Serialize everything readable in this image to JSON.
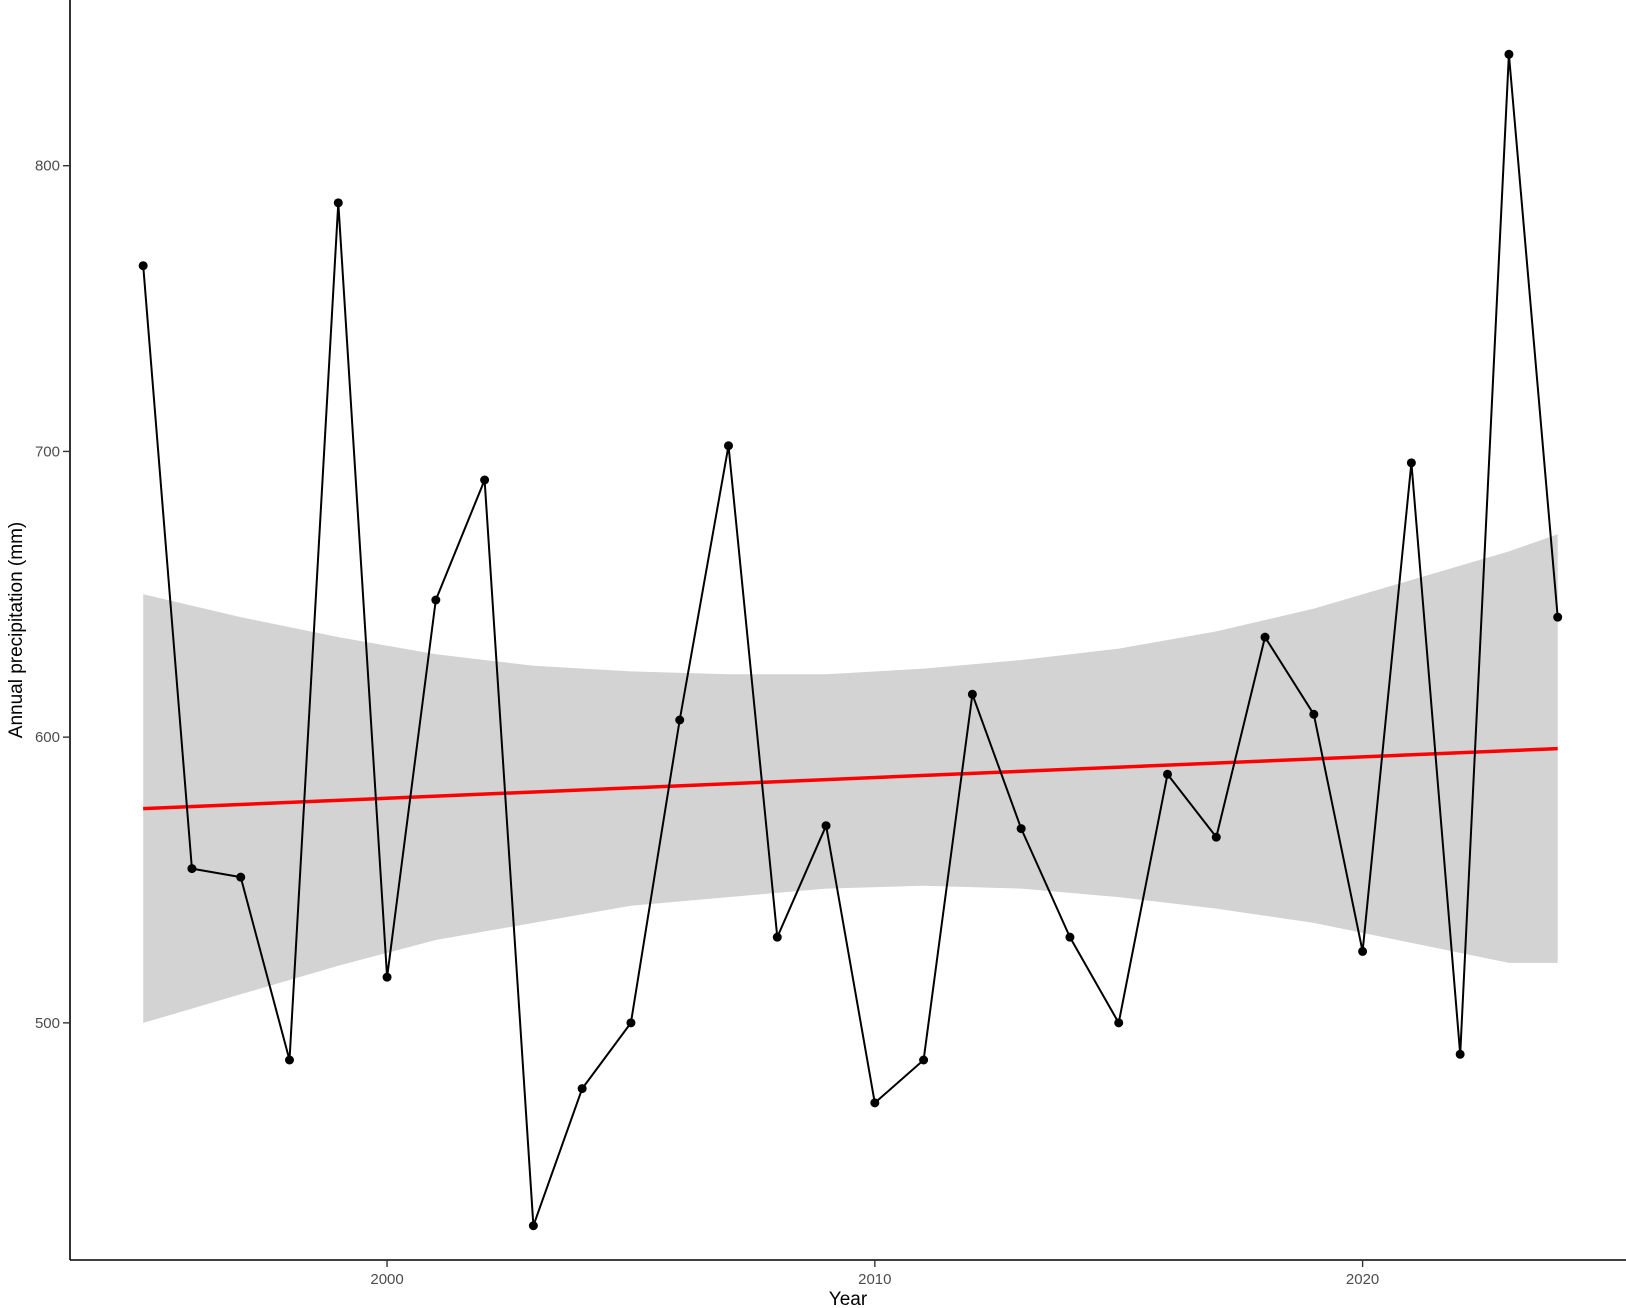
{
  "chart_data": {
    "type": "line",
    "title": "",
    "xlabel": "Year",
    "ylabel": "Annual precipitation (mm)",
    "xlim": [
      1993.5,
      2025.4
    ],
    "ylim": [
      417,
      858
    ],
    "x_ticks": [
      2000,
      2010,
      2020
    ],
    "y_ticks": [
      500,
      600,
      700,
      800
    ],
    "grid": false,
    "legend": "none",
    "series": [
      {
        "x": [
          1995,
          1996,
          1997,
          1998,
          1999,
          2000,
          2001,
          2002,
          2003,
          2004,
          2005,
          2006,
          2007,
          2008,
          2009,
          2010,
          2011,
          2012,
          2013,
          2014,
          2015,
          2016,
          2017,
          2018,
          2019,
          2020,
          2021,
          2022,
          2023,
          2024
        ],
        "values": [
          765,
          554,
          551,
          487,
          787,
          516,
          648,
          690,
          429,
          477,
          500,
          606,
          702,
          530,
          569,
          472,
          487,
          615,
          568,
          530,
          500,
          587,
          565,
          635,
          608,
          525,
          696,
          489,
          839,
          642
        ],
        "color": "#000000"
      }
    ],
    "trend": {
      "method": "lm",
      "x": [
        1995,
        2024
      ],
      "values": [
        575,
        596
      ],
      "color": "#ff0000"
    },
    "confidence_band": {
      "fill": "#d3d3d3",
      "x": [
        1995,
        1997,
        1999,
        2001,
        2003,
        2005,
        2007,
        2009,
        2011,
        2013,
        2015,
        2017,
        2019,
        2021,
        2023,
        2024
      ],
      "upper": [
        650,
        642,
        635,
        629,
        625,
        623,
        622,
        622,
        624,
        627,
        631,
        637,
        645,
        655,
        665,
        671
      ],
      "lower": [
        500,
        510,
        520,
        529,
        535,
        541,
        544,
        547,
        548,
        547,
        544,
        540,
        535,
        528,
        521,
        521
      ]
    }
  }
}
